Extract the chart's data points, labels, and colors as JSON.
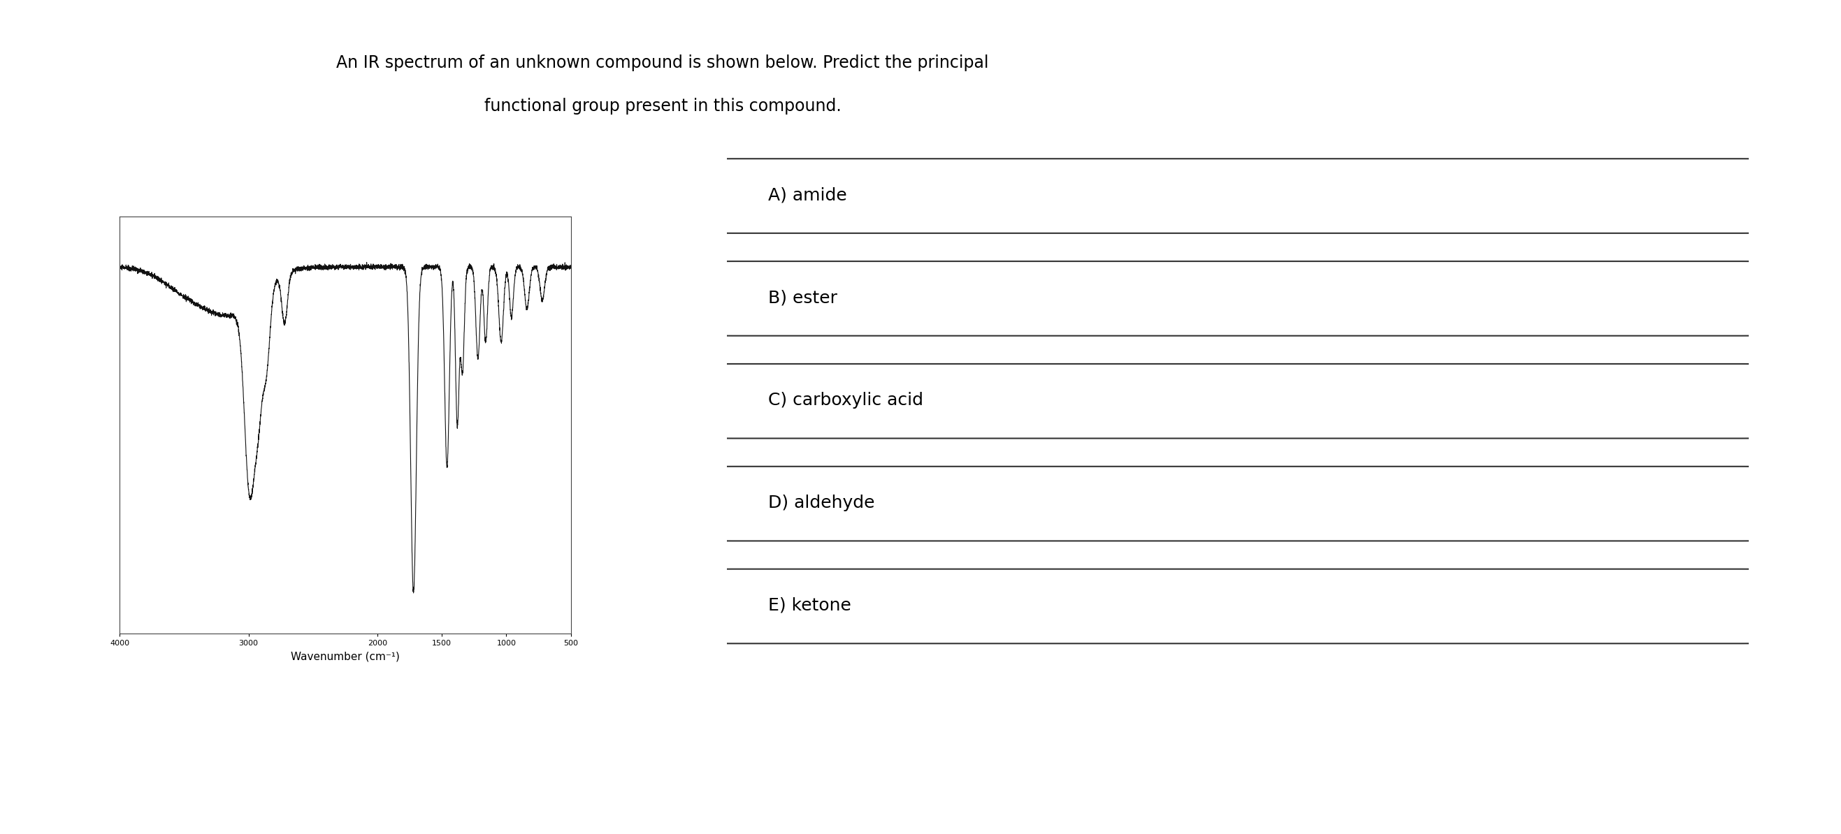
{
  "title_line1": "An IR spectrum of an unknown compound is shown below. Predict the principal",
  "title_line2": "functional group present in this compound.",
  "title_fontsize": 17,
  "bg_color": "#ffffff",
  "outer_box_color": "#666666",
  "spectrum_line_color": "#111111",
  "options": [
    "A) amide",
    "B) ester",
    "C) carboxylic acid",
    "D) aldehyde",
    "E) ketone"
  ],
  "option_fontsize": 18,
  "xlabel": "Wavenumber (cm⁻¹)",
  "xlabel_fontsize": 11,
  "xmin": 4000,
  "xmax": 500,
  "ymin": 0,
  "ymax": 1
}
